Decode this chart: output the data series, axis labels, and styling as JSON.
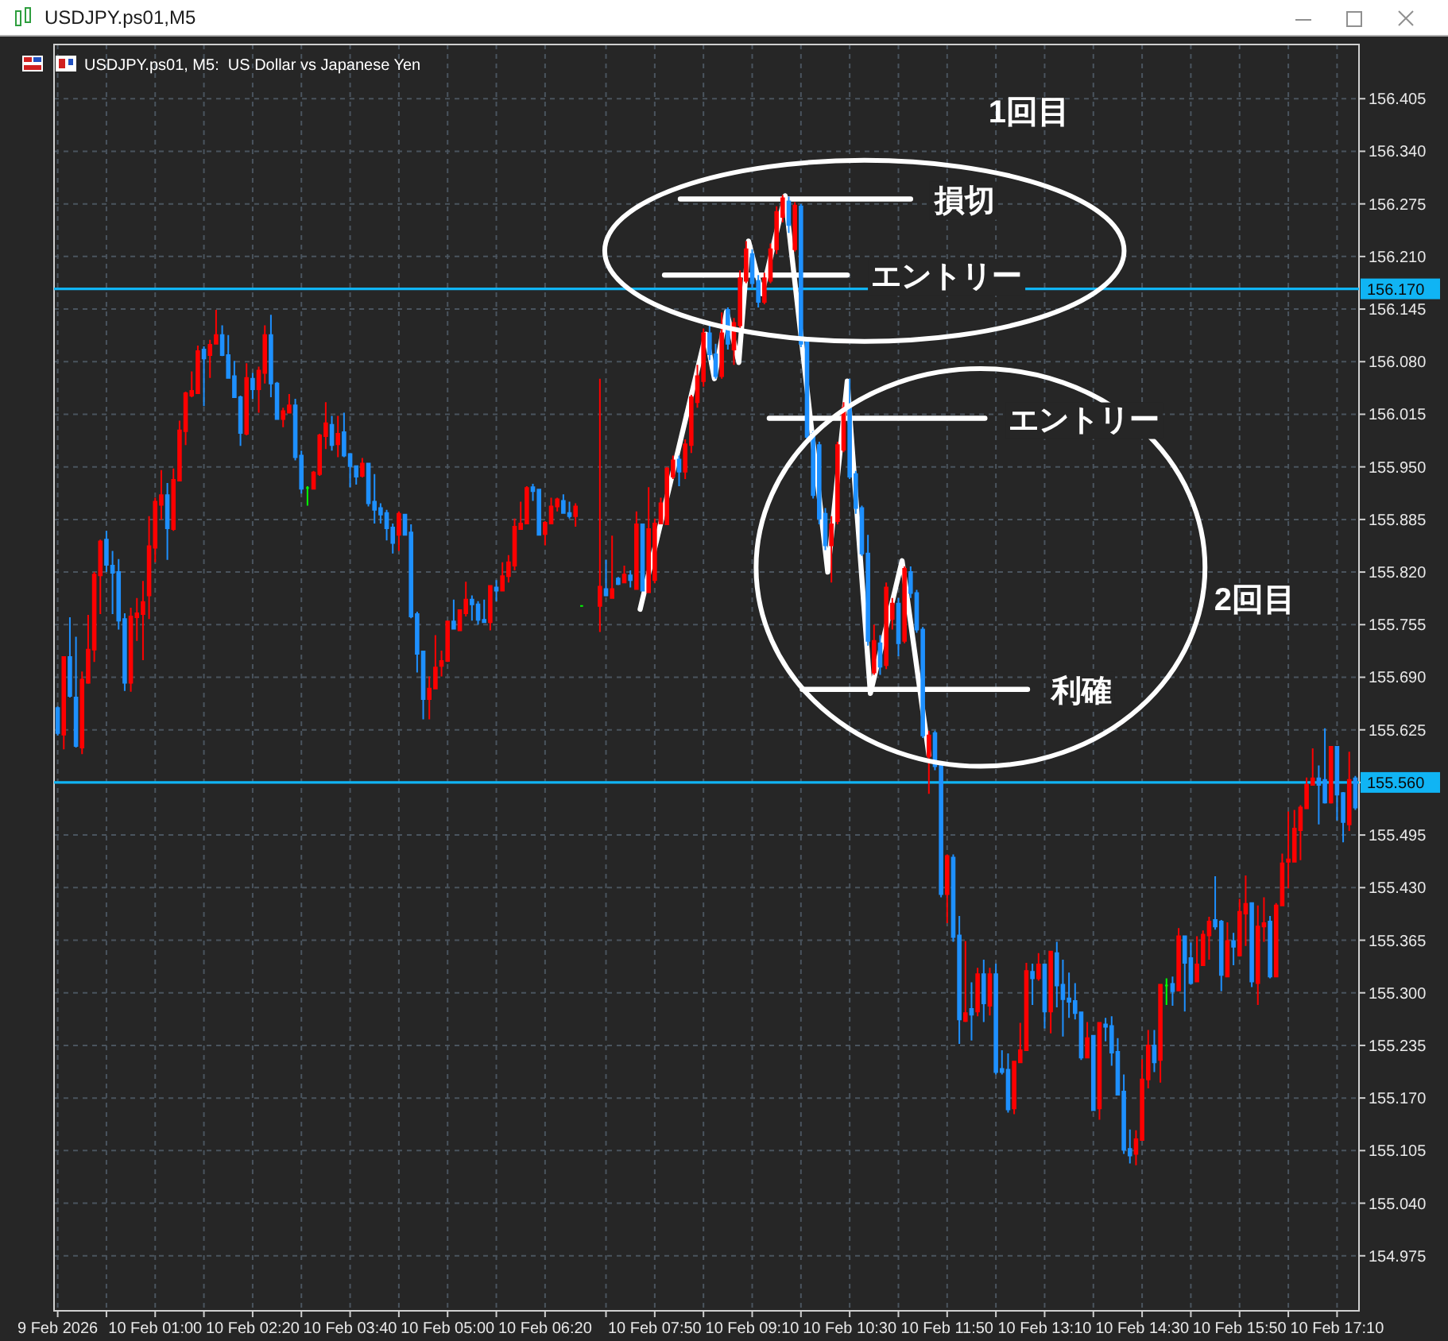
{
  "chart_data": {
    "type": "candlestick",
    "title": "USDJPY.ps01,M5",
    "subtitle": "USDJPY.ps01, M5:  US Dollar vs Japanese Yen",
    "xlim": [
      "2026-02-09T23:37",
      "2026-02-10T17:28"
    ],
    "xticks": [
      {
        "value": "2026-02-09T23:40",
        "label": "9 Feb 2026"
      },
      {
        "value": "2026-02-10T00:20",
        "label": null
      },
      {
        "value": "2026-02-10T01:00",
        "label": "10 Feb 01:00"
      },
      {
        "value": "2026-02-10T01:40",
        "label": null
      },
      {
        "value": "2026-02-10T02:20",
        "label": "10 Feb 02:20"
      },
      {
        "value": "2026-02-10T03:00",
        "label": null
      },
      {
        "value": "2026-02-10T03:40",
        "label": "10 Feb 03:40"
      },
      {
        "value": "2026-02-10T04:20",
        "label": null
      },
      {
        "value": "2026-02-10T05:00",
        "label": "10 Feb 05:00"
      },
      {
        "value": "2026-02-10T05:40",
        "label": null
      },
      {
        "value": "2026-02-10T06:20",
        "label": "10 Feb 06:20"
      },
      {
        "value": "2026-02-10T07:10",
        "label": null
      },
      {
        "value": "2026-02-10T07:50",
        "label": "10 Feb 07:50"
      },
      {
        "value": "2026-02-10T08:30",
        "label": null
      },
      {
        "value": "2026-02-10T09:10",
        "label": "10 Feb 09:10"
      },
      {
        "value": "2026-02-10T09:50",
        "label": null
      },
      {
        "value": "2026-02-10T10:30",
        "label": "10 Feb 10:30"
      },
      {
        "value": "2026-02-10T11:10",
        "label": null
      },
      {
        "value": "2026-02-10T11:50",
        "label": "10 Feb 11:50"
      },
      {
        "value": "2026-02-10T12:30",
        "label": null
      },
      {
        "value": "2026-02-10T13:10",
        "label": "10 Feb 13:10"
      },
      {
        "value": "2026-02-10T13:50",
        "label": null
      },
      {
        "value": "2026-02-10T14:30",
        "label": "10 Feb 14:30"
      },
      {
        "value": "2026-02-10T15:10",
        "label": null
      },
      {
        "value": "2026-02-10T15:50",
        "label": "10 Feb 15:50"
      },
      {
        "value": "2026-02-10T16:30",
        "label": null
      },
      {
        "value": "2026-02-10T17:10",
        "label": "10 Feb 17:10"
      }
    ],
    "ylim": [
      154.907,
      156.472
    ],
    "yticks": [
      154.975,
      {
        "value": 155.04,
        "label": "155.040"
      },
      155.105,
      {
        "value": 155.17,
        "label": "155.170"
      },
      155.235,
      {
        "value": 155.3,
        "label": "155.300"
      },
      155.365,
      {
        "value": 155.43,
        "label": "155.430"
      },
      155.495,
      {
        "value": 155.56,
        "label": null
      },
      155.625,
      {
        "value": 155.69,
        "label": "155.690"
      },
      155.755,
      {
        "value": 155.82,
        "label": "155.820"
      },
      155.885,
      {
        "value": 155.95,
        "label": "155.950"
      },
      156.015,
      {
        "value": 156.08,
        "label": "156.080"
      },
      156.145,
      {
        "value": 156.21,
        "label": "156.210"
      },
      156.275,
      {
        "value": 156.34,
        "label": "156.340"
      },
      156.405
    ],
    "grid": true,
    "ref_lines": [
      {
        "axis": "y",
        "value": 156.17,
        "label": "156.170",
        "color": "#10b4f4"
      },
      {
        "axis": "y",
        "value": 155.56,
        "label": "155.560",
        "color": "#10b4f4"
      }
    ],
    "annotations": [
      "1回目",
      "2回目"
    ],
    "series": [
      {
        "x": [
          "2026-02-09T23:40",
          "2026-02-09T23:45",
          "2026-02-09T23:50",
          "2026-02-09T23:55",
          "2026-02-10T00:00",
          "2026-02-10T00:05",
          "2026-02-10T00:10",
          "2026-02-10T00:15",
          "2026-02-10T00:20",
          "2026-02-10T00:25",
          "2026-02-10T00:30",
          "2026-02-10T00:35",
          "2026-02-10T00:40",
          "2026-02-10T00:45",
          "2026-02-10T00:50",
          "2026-02-10T00:55",
          "2026-02-10T01:00",
          "2026-02-10T01:05",
          "2026-02-10T01:10",
          "2026-02-10T01:15",
          "2026-02-10T01:20",
          "2026-02-10T01:25",
          "2026-02-10T01:30",
          "2026-02-10T01:35",
          "2026-02-10T01:40",
          "2026-02-10T01:45",
          "2026-02-10T01:50",
          "2026-02-10T01:55",
          "2026-02-10T02:00",
          "2026-02-10T02:05",
          "2026-02-10T02:10",
          "2026-02-10T02:15",
          "2026-02-10T02:20",
          "2026-02-10T02:25",
          "2026-02-10T02:30",
          "2026-02-10T02:35",
          "2026-02-10T02:40",
          "2026-02-10T02:45",
          "2026-02-10T02:50",
          "2026-02-10T02:55",
          "2026-02-10T03:00",
          "2026-02-10T03:05",
          "2026-02-10T03:10",
          "2026-02-10T03:15",
          "2026-02-10T03:20",
          "2026-02-10T03:25",
          "2026-02-10T03:30",
          "2026-02-10T03:35",
          "2026-02-10T03:40",
          "2026-02-10T03:45",
          "2026-02-10T03:50",
          "2026-02-10T03:55",
          "2026-02-10T04:00",
          "2026-02-10T04:05",
          "2026-02-10T04:10",
          "2026-02-10T04:15",
          "2026-02-10T04:20",
          "2026-02-10T04:25",
          "2026-02-10T04:30",
          "2026-02-10T04:35",
          "2026-02-10T04:40",
          "2026-02-10T04:45",
          "2026-02-10T04:50",
          "2026-02-10T04:55",
          "2026-02-10T05:00",
          "2026-02-10T05:05",
          "2026-02-10T05:10",
          "2026-02-10T05:15",
          "2026-02-10T05:20",
          "2026-02-10T05:25",
          "2026-02-10T05:30",
          "2026-02-10T05:35",
          "2026-02-10T05:40",
          "2026-02-10T05:45",
          "2026-02-10T05:50",
          "2026-02-10T05:55",
          "2026-02-10T06:00",
          "2026-02-10T06:05",
          "2026-02-10T06:10",
          "2026-02-10T06:15",
          "2026-02-10T06:20",
          "2026-02-10T06:25",
          "2026-02-10T06:30",
          "2026-02-10T06:35",
          "2026-02-10T06:40",
          "2026-02-10T06:45",
          "2026-02-10T06:50",
          "2026-02-10T07:05",
          "2026-02-10T07:10",
          "2026-02-10T07:15",
          "2026-02-10T07:20",
          "2026-02-10T07:25",
          "2026-02-10T07:30",
          "2026-02-10T07:35",
          "2026-02-10T07:40",
          "2026-02-10T07:45",
          "2026-02-10T07:50",
          "2026-02-10T07:55",
          "2026-02-10T08:00",
          "2026-02-10T08:05",
          "2026-02-10T08:10",
          "2026-02-10T08:15",
          "2026-02-10T08:20",
          "2026-02-10T08:25",
          "2026-02-10T08:30",
          "2026-02-10T08:35",
          "2026-02-10T08:40",
          "2026-02-10T08:45",
          "2026-02-10T08:50",
          "2026-02-10T08:55",
          "2026-02-10T09:00",
          "2026-02-10T09:05",
          "2026-02-10T09:10",
          "2026-02-10T09:15",
          "2026-02-10T09:20",
          "2026-02-10T09:25",
          "2026-02-10T09:30",
          "2026-02-10T09:35",
          "2026-02-10T09:40",
          "2026-02-10T09:45",
          "2026-02-10T09:50",
          "2026-02-10T09:55",
          "2026-02-10T10:00",
          "2026-02-10T10:05",
          "2026-02-10T10:10",
          "2026-02-10T10:15",
          "2026-02-10T10:20",
          "2026-02-10T10:25",
          "2026-02-10T10:30",
          "2026-02-10T10:35",
          "2026-02-10T10:40",
          "2026-02-10T10:45",
          "2026-02-10T10:50",
          "2026-02-10T10:55",
          "2026-02-10T11:00",
          "2026-02-10T11:05",
          "2026-02-10T11:10",
          "2026-02-10T11:15",
          "2026-02-10T11:20",
          "2026-02-10T11:25",
          "2026-02-10T11:30",
          "2026-02-10T11:35",
          "2026-02-10T11:40",
          "2026-02-10T11:45",
          "2026-02-10T11:50",
          "2026-02-10T11:55",
          "2026-02-10T12:00",
          "2026-02-10T12:05",
          "2026-02-10T12:10",
          "2026-02-10T12:15",
          "2026-02-10T12:20",
          "2026-02-10T12:25",
          "2026-02-10T12:30",
          "2026-02-10T12:35",
          "2026-02-10T12:40",
          "2026-02-10T12:45",
          "2026-02-10T12:50",
          "2026-02-10T12:55",
          "2026-02-10T13:00",
          "2026-02-10T13:05",
          "2026-02-10T13:10",
          "2026-02-10T13:15",
          "2026-02-10T13:20",
          "2026-02-10T13:25",
          "2026-02-10T13:30",
          "2026-02-10T13:35",
          "2026-02-10T13:40",
          "2026-02-10T13:45",
          "2026-02-10T13:50",
          "2026-02-10T13:55",
          "2026-02-10T14:00",
          "2026-02-10T14:05",
          "2026-02-10T14:10",
          "2026-02-10T14:15",
          "2026-02-10T14:20",
          "2026-02-10T14:25",
          "2026-02-10T14:30",
          "2026-02-10T14:35",
          "2026-02-10T14:40",
          "2026-02-10T14:45",
          "2026-02-10T14:50",
          "2026-02-10T14:55",
          "2026-02-10T15:00",
          "2026-02-10T15:05",
          "2026-02-10T15:10",
          "2026-02-10T15:15",
          "2026-02-10T15:20",
          "2026-02-10T15:25",
          "2026-02-10T15:30",
          "2026-02-10T15:35",
          "2026-02-10T15:40",
          "2026-02-10T15:45",
          "2026-02-10T15:50",
          "2026-02-10T15:55",
          "2026-02-10T16:00",
          "2026-02-10T16:05",
          "2026-02-10T16:10",
          "2026-02-10T16:15",
          "2026-02-10T16:20",
          "2026-02-10T16:25",
          "2026-02-10T16:30",
          "2026-02-10T16:35",
          "2026-02-10T16:40",
          "2026-02-10T16:45",
          "2026-02-10T16:50",
          "2026-02-10T16:55",
          "2026-02-10T17:00",
          "2026-02-10T17:05",
          "2026-02-10T17:10",
          "2026-02-10T17:15",
          "2026-02-10T17:20",
          "2026-02-10T17:25"
        ],
        "ohlc": [
          [
            155.652,
            155.654,
            155.618,
            155.621
          ],
          [
            155.619,
            155.715,
            155.601,
            155.715
          ],
          [
            155.715,
            155.764,
            155.665,
            155.667
          ],
          [
            155.665,
            155.74,
            155.603,
            155.605
          ],
          [
            155.603,
            155.697,
            155.595,
            155.687
          ],
          [
            155.683,
            155.767,
            155.682,
            155.724
          ],
          [
            155.724,
            155.82,
            155.709,
            155.817
          ],
          [
            155.816,
            155.86,
            155.768,
            155.858
          ],
          [
            155.86,
            155.871,
            155.82,
            155.829
          ],
          [
            155.828,
            155.846,
            155.768,
            155.819
          ],
          [
            155.82,
            155.836,
            155.749,
            155.76
          ],
          [
            155.762,
            155.769,
            155.673,
            155.683
          ],
          [
            155.683,
            155.776,
            155.672,
            155.765
          ],
          [
            155.764,
            155.788,
            155.735,
            155.769
          ],
          [
            155.768,
            155.809,
            155.711,
            155.783
          ],
          [
            155.791,
            155.889,
            155.762,
            155.852
          ],
          [
            155.85,
            155.912,
            155.832,
            155.907
          ],
          [
            155.903,
            155.946,
            155.885,
            155.915
          ],
          [
            155.915,
            155.93,
            155.835,
            155.874
          ],
          [
            155.873,
            155.948,
            155.871,
            155.934
          ],
          [
            155.933,
            156.007,
            155.933,
            155.995
          ],
          [
            155.994,
            156.043,
            155.977,
            156.041
          ],
          [
            156.038,
            156.068,
            156.036,
            156.044
          ],
          [
            156.041,
            156.1,
            156.041,
            156.093
          ],
          [
            156.095,
            156.099,
            156.025,
            156.084
          ],
          [
            156.088,
            156.107,
            156.06,
            156.101
          ],
          [
            156.102,
            156.144,
            156.102,
            156.113
          ],
          [
            156.113,
            156.125,
            156.087,
            156.088
          ],
          [
            156.088,
            156.113,
            156.06,
            156.06
          ],
          [
            156.062,
            156.081,
            156.035,
            156.036
          ],
          [
            156.036,
            156.038,
            155.976,
            155.992
          ],
          [
            155.991,
            156.078,
            155.989,
            156.06
          ],
          [
            156.059,
            156.066,
            156.034,
            156.046
          ],
          [
            156.046,
            156.074,
            156.017,
            156.069
          ],
          [
            156.066,
            156.125,
            156.053,
            156.113
          ],
          [
            156.113,
            156.138,
            156.036,
            156.053
          ],
          [
            156.053,
            156.055,
            156.008,
            156.009
          ],
          [
            156.009,
            156.023,
            155.999,
            156.019
          ],
          [
            156.017,
            156.04,
            156.016,
            156.026
          ],
          [
            156.026,
            156.034,
            155.958,
            155.962
          ],
          [
            155.964,
            155.97,
            155.917,
            155.923
          ],
          [
            155.924,
            155.926,
            155.902,
            155.924
          ],
          [
            155.923,
            155.945,
            155.922,
            155.943
          ],
          [
            155.941,
            155.991,
            155.939,
            155.989
          ],
          [
            155.988,
            156.03,
            155.972,
            156.004
          ],
          [
            156.002,
            156.013,
            155.97,
            155.977
          ],
          [
            155.978,
            156.013,
            155.962,
            155.991
          ],
          [
            155.993,
            156.017,
            155.962,
            155.964
          ],
          [
            155.966,
            155.967,
            155.925,
            155.951
          ],
          [
            155.951,
            155.952,
            155.928,
            155.938
          ],
          [
            155.939,
            155.961,
            155.937,
            155.954
          ],
          [
            155.954,
            155.955,
            155.901,
            155.905
          ],
          [
            155.907,
            155.941,
            155.88,
            155.897
          ],
          [
            155.899,
            155.905,
            155.88,
            155.891
          ],
          [
            155.893,
            155.897,
            155.859,
            155.874
          ],
          [
            155.875,
            155.88,
            155.843,
            155.856
          ],
          [
            155.866,
            155.895,
            155.846,
            155.892
          ],
          [
            155.891,
            155.892,
            155.865,
            155.866
          ],
          [
            155.869,
            155.879,
            155.763,
            155.765
          ],
          [
            155.768,
            155.771,
            155.696,
            155.719
          ],
          [
            155.722,
            155.723,
            155.638,
            155.663
          ],
          [
            155.663,
            155.691,
            155.638,
            155.676
          ],
          [
            155.676,
            155.742,
            155.675,
            155.702
          ],
          [
            155.704,
            155.723,
            155.691,
            155.71
          ],
          [
            155.71,
            155.76,
            155.709,
            155.759
          ],
          [
            155.759,
            155.786,
            155.749,
            155.75
          ],
          [
            155.748,
            155.774,
            155.747,
            155.773
          ],
          [
            155.769,
            155.808,
            155.765,
            155.786
          ],
          [
            155.786,
            155.791,
            155.76,
            155.78
          ],
          [
            155.78,
            155.784,
            155.755,
            155.761
          ],
          [
            155.761,
            155.786,
            155.757,
            155.758
          ],
          [
            155.758,
            155.804,
            155.748,
            155.803
          ],
          [
            155.801,
            155.81,
            155.784,
            155.797
          ],
          [
            155.797,
            155.832,
            155.796,
            155.815
          ],
          [
            155.815,
            155.841,
            155.807,
            155.832
          ],
          [
            155.828,
            155.886,
            155.822,
            155.876
          ],
          [
            155.873,
            155.907,
            155.872,
            155.88
          ],
          [
            155.88,
            155.926,
            155.879,
            155.924
          ],
          [
            155.925,
            155.929,
            155.908,
            155.92
          ],
          [
            155.922,
            155.923,
            155.865,
            155.866
          ],
          [
            155.867,
            155.883,
            155.853,
            155.881
          ],
          [
            155.88,
            155.912,
            155.879,
            155.901
          ],
          [
            155.901,
            155.912,
            155.895,
            155.91
          ],
          [
            155.908,
            155.916,
            155.892,
            155.893
          ],
          [
            155.893,
            155.907,
            155.886,
            155.889
          ],
          [
            155.889,
            155.905,
            155.876,
            155.901
          ],
          [
            155.778,
            155.778,
            155.778,
            155.778
          ],
          [
            155.778,
            156.059,
            155.746,
            155.802
          ],
          [
            155.799,
            155.835,
            155.79,
            155.791
          ],
          [
            155.788,
            155.865,
            155.787,
            155.799
          ],
          [
            155.812,
            155.814,
            155.804,
            155.805
          ],
          [
            155.807,
            155.828,
            155.806,
            155.817
          ],
          [
            155.816,
            155.822,
            155.801,
            155.81
          ],
          [
            155.799,
            155.895,
            155.798,
            155.879
          ],
          [
            155.879,
            155.88,
            155.796,
            155.797
          ],
          [
            155.795,
            155.925,
            155.794,
            155.873
          ],
          [
            155.81,
            155.886,
            155.806,
            155.88
          ],
          [
            155.88,
            155.912,
            155.879,
            155.905
          ],
          [
            155.879,
            155.95,
            155.878,
            155.948
          ],
          [
            155.938,
            155.964,
            155.935,
            155.958
          ],
          [
            155.959,
            155.964,
            155.926,
            155.944
          ],
          [
            155.944,
            155.984,
            155.935,
            155.978
          ],
          [
            155.977,
            156.039,
            155.967,
            156.036
          ],
          [
            156.03,
            156.076,
            156.023,
            156.062
          ],
          [
            156.056,
            156.121,
            156.049,
            156.115
          ],
          [
            156.115,
            156.128,
            156.082,
            156.089
          ],
          [
            156.089,
            156.102,
            156.059,
            156.062
          ],
          [
            156.062,
            156.141,
            156.059,
            156.115
          ],
          [
            156.144,
            156.147,
            156.095,
            156.102
          ],
          [
            156.095,
            156.134,
            156.076,
            156.128
          ],
          [
            156.125,
            156.193,
            156.121,
            156.183
          ],
          [
            156.18,
            156.229,
            156.177,
            156.219
          ],
          [
            156.213,
            156.219,
            156.17,
            156.177
          ],
          [
            156.18,
            156.187,
            156.147,
            156.154
          ],
          [
            156.154,
            156.19,
            156.151,
            156.183
          ],
          [
            156.18,
            156.226,
            156.177,
            156.219
          ],
          [
            156.219,
            156.272,
            156.213,
            156.265
          ],
          [
            156.259,
            156.286,
            156.252,
            156.282
          ],
          [
            156.278,
            156.284,
            156.239,
            156.249
          ],
          [
            156.219,
            156.277,
            156.216,
            156.273
          ],
          [
            156.272,
            156.275,
            156.098,
            156.102
          ],
          [
            156.107,
            156.108,
            155.984,
            155.987
          ],
          [
            155.991,
            155.994,
            155.911,
            155.915
          ],
          [
            155.977,
            155.981,
            155.879,
            155.886
          ],
          [
            155.892,
            155.899,
            155.847,
            155.853
          ],
          [
            155.853,
            155.889,
            155.807,
            155.879
          ],
          [
            155.883,
            155.981,
            155.879,
            155.977
          ],
          [
            155.971,
            156.03,
            155.968,
            156.023
          ],
          [
            156.023,
            156.059,
            155.935,
            155.938
          ],
          [
            155.941,
            155.945,
            155.892,
            155.899
          ],
          [
            155.899,
            155.902,
            155.84,
            155.843
          ],
          [
            155.843,
            155.866,
            155.729,
            155.735
          ],
          [
            155.696,
            155.755,
            155.693,
            155.735
          ],
          [
            155.732,
            155.742,
            155.693,
            155.703
          ],
          [
            155.705,
            155.807,
            155.7,
            155.801
          ],
          [
            155.762,
            155.788,
            155.749,
            155.781
          ],
          [
            155.781,
            155.788,
            155.716,
            155.732
          ],
          [
            155.735,
            155.827,
            155.732,
            155.824
          ],
          [
            155.82,
            155.827,
            155.788,
            155.794
          ],
          [
            155.794,
            155.798,
            155.745,
            155.749
          ],
          [
            155.749,
            155.752,
            155.615,
            155.618
          ],
          [
            155.592,
            155.624,
            155.546,
            155.618
          ],
          [
            155.621,
            155.624,
            155.575,
            155.58
          ],
          [
            155.582,
            155.585,
            155.418,
            155.422
          ],
          [
            155.422,
            155.471,
            155.386,
            155.469
          ],
          [
            155.467,
            155.471,
            155.363,
            155.369
          ],
          [
            155.371,
            155.395,
            155.237,
            155.267
          ],
          [
            155.265,
            155.364,
            155.264,
            155.275
          ],
          [
            155.28,
            155.313,
            155.241,
            155.273
          ],
          [
            155.277,
            155.331,
            155.271,
            155.323
          ],
          [
            155.323,
            155.341,
            155.264,
            155.287
          ],
          [
            155.284,
            155.331,
            155.272,
            155.323
          ],
          [
            155.323,
            155.336,
            155.199,
            155.202
          ],
          [
            155.206,
            155.229,
            155.199,
            155.202
          ],
          [
            155.205,
            155.225,
            155.152,
            155.156
          ],
          [
            155.157,
            155.216,
            155.15,
            155.215
          ],
          [
            155.214,
            155.263,
            155.213,
            155.229
          ],
          [
            155.229,
            155.337,
            155.228,
            155.327
          ],
          [
            155.326,
            155.336,
            155.285,
            155.318
          ],
          [
            155.318,
            155.349,
            155.315,
            155.335
          ],
          [
            155.335,
            155.336,
            155.256,
            155.277
          ],
          [
            155.277,
            155.352,
            155.25,
            155.351
          ],
          [
            155.349,
            155.363,
            155.282,
            155.309
          ],
          [
            155.31,
            155.341,
            155.246,
            155.292
          ],
          [
            155.293,
            155.325,
            155.269,
            155.289
          ],
          [
            155.29,
            155.312,
            155.267,
            155.275
          ],
          [
            155.276,
            155.277,
            155.217,
            155.22
          ],
          [
            155.22,
            155.264,
            155.219,
            155.244
          ],
          [
            155.247,
            155.248,
            155.154,
            155.155
          ],
          [
            155.157,
            155.264,
            155.143,
            155.263
          ],
          [
            155.261,
            155.269,
            155.24,
            155.258
          ],
          [
            155.259,
            155.271,
            155.21,
            155.226
          ],
          [
            155.227,
            155.244,
            155.173,
            155.174
          ],
          [
            155.178,
            155.199,
            155.101,
            155.106
          ],
          [
            155.107,
            155.131,
            155.089,
            155.099
          ],
          [
            155.101,
            155.13,
            155.087,
            155.119
          ],
          [
            155.118,
            155.218,
            155.117,
            155.193
          ],
          [
            155.193,
            155.254,
            155.182,
            155.235
          ],
          [
            155.235,
            155.254,
            155.202,
            155.214
          ],
          [
            155.217,
            155.311,
            155.189,
            155.31
          ],
          [
            155.309,
            155.318,
            155.285,
            155.309
          ],
          [
            155.311,
            155.32,
            155.284,
            155.302
          ],
          [
            155.303,
            155.38,
            155.302,
            155.37
          ],
          [
            155.37,
            155.371,
            155.277,
            155.337
          ],
          [
            155.343,
            155.362,
            155.31,
            155.312
          ],
          [
            155.314,
            155.37,
            155.313,
            155.335
          ],
          [
            155.334,
            155.377,
            155.333,
            155.372
          ],
          [
            155.371,
            155.394,
            155.341,
            155.388
          ],
          [
            155.39,
            155.444,
            155.378,
            155.382
          ],
          [
            155.388,
            155.39,
            155.302,
            155.322
          ],
          [
            155.32,
            155.387,
            155.319,
            155.364
          ],
          [
            155.364,
            155.374,
            155.334,
            155.357
          ],
          [
            155.346,
            155.416,
            155.345,
            155.4
          ],
          [
            155.398,
            155.445,
            155.358,
            155.41
          ],
          [
            155.411,
            155.412,
            155.307,
            155.314
          ],
          [
            155.312,
            155.408,
            155.285,
            155.382
          ],
          [
            155.382,
            155.418,
            155.363,
            155.386
          ],
          [
            155.388,
            155.395,
            155.318,
            155.32
          ],
          [
            155.32,
            155.411,
            155.319,
            155.408
          ],
          [
            155.408,
            155.472,
            155.407,
            155.46
          ],
          [
            155.462,
            155.524,
            155.429,
            155.465
          ],
          [
            155.462,
            155.526,
            155.461,
            155.503
          ],
          [
            155.501,
            155.532,
            155.464,
            155.529
          ],
          [
            155.528,
            155.566,
            155.527,
            155.557
          ],
          [
            155.557,
            155.602,
            155.556,
            155.565
          ],
          [
            155.565,
            155.581,
            155.508,
            155.557
          ],
          [
            155.563,
            155.627,
            155.534,
            155.535
          ],
          [
            155.535,
            155.605,
            155.534,
            155.604
          ],
          [
            155.604,
            155.605,
            155.513,
            155.545
          ],
          [
            155.547,
            155.548,
            155.486,
            155.511
          ],
          [
            155.508,
            155.598,
            155.5,
            155.563
          ],
          [
            155.565,
            155.568,
            155.526,
            155.529
          ]
        ],
        "colors": [
          "#1e90ff",
          "#ff0000",
          "#1e90ff",
          "#1e90ff",
          "#ff0000",
          "#ff0000",
          "#ff0000",
          "#ff0000",
          "#1e90ff",
          "#1e90ff",
          "#1e90ff",
          "#1e90ff",
          "#ff0000",
          "#ff0000",
          "#ff0000",
          "#ff0000",
          "#ff0000",
          "#ff0000",
          "#1e90ff",
          "#ff0000",
          "#ff0000",
          "#ff0000",
          "#ff0000",
          "#ff0000",
          "#1e90ff",
          "#ff0000",
          "#ff0000",
          "#1e90ff",
          "#1e90ff",
          "#1e90ff",
          "#1e90ff",
          "#ff0000",
          "#1e90ff",
          "#ff0000",
          "#ff0000",
          "#1e90ff",
          "#1e90ff",
          "#ff0000",
          "#ff0000",
          "#1e90ff",
          "#1e90ff",
          "#00ff00",
          "#ff0000",
          "#ff0000",
          "#ff0000",
          "#1e90ff",
          "#ff0000",
          "#1e90ff",
          "#1e90ff",
          "#1e90ff",
          "#ff0000",
          "#1e90ff",
          "#1e90ff",
          "#1e90ff",
          "#1e90ff",
          "#1e90ff",
          "#ff0000",
          "#1e90ff",
          "#1e90ff",
          "#1e90ff",
          "#1e90ff",
          "#ff0000",
          "#ff0000",
          "#ff0000",
          "#ff0000",
          "#1e90ff",
          "#ff0000",
          "#ff0000",
          "#1e90ff",
          "#1e90ff",
          "#1e90ff",
          "#ff0000",
          "#1e90ff",
          "#ff0000",
          "#ff0000",
          "#ff0000",
          "#ff0000",
          "#ff0000",
          "#1e90ff",
          "#1e90ff",
          "#ff0000",
          "#ff0000",
          "#ff0000",
          "#1e90ff",
          "#1e90ff",
          "#ff0000",
          "#00ff00",
          "#ff0000",
          "#1e90ff",
          "#ff0000",
          "#1e90ff",
          "#ff0000",
          "#1e90ff",
          "#ff0000",
          "#1e90ff",
          "#ff0000",
          "#ff0000",
          "#ff0000",
          "#ff0000",
          "#ff0000",
          "#1e90ff",
          "#ff0000",
          "#ff0000",
          "#ff0000",
          "#ff0000",
          "#1e90ff",
          "#1e90ff",
          "#ff0000",
          "#1e90ff",
          "#ff0000",
          "#ff0000",
          "#ff0000",
          "#1e90ff",
          "#1e90ff",
          "#ff0000",
          "#ff0000",
          "#ff0000",
          "#ff0000",
          "#1e90ff",
          "#ff0000",
          "#1e90ff",
          "#1e90ff",
          "#1e90ff",
          "#1e90ff",
          "#1e90ff",
          "#ff0000",
          "#ff0000",
          "#ff0000",
          "#1e90ff",
          "#1e90ff",
          "#1e90ff",
          "#1e90ff",
          "#ff0000",
          "#1e90ff",
          "#ff0000",
          "#ff0000",
          "#1e90ff",
          "#ff0000",
          "#1e90ff",
          "#1e90ff",
          "#1e90ff",
          "#ff0000",
          "#1e90ff",
          "#1e90ff",
          "#ff0000",
          "#1e90ff",
          "#1e90ff",
          "#ff0000",
          "#1e90ff",
          "#ff0000",
          "#1e90ff",
          "#ff0000",
          "#1e90ff",
          "#1e90ff",
          "#1e90ff",
          "#ff0000",
          "#ff0000",
          "#ff0000",
          "#1e90ff",
          "#ff0000",
          "#1e90ff",
          "#ff0000",
          "#1e90ff",
          "#1e90ff",
          "#1e90ff",
          "#1e90ff",
          "#1e90ff",
          "#ff0000",
          "#1e90ff",
          "#ff0000",
          "#1e90ff",
          "#1e90ff",
          "#1e90ff",
          "#1e90ff",
          "#1e90ff",
          "#ff0000",
          "#ff0000",
          "#ff0000",
          "#1e90ff",
          "#ff0000",
          "#00ff00",
          "#1e90ff",
          "#ff0000",
          "#1e90ff",
          "#1e90ff",
          "#ff0000",
          "#ff0000",
          "#ff0000",
          "#1e90ff",
          "#1e90ff",
          "#ff0000",
          "#1e90ff",
          "#ff0000",
          "#ff0000",
          "#1e90ff",
          "#ff0000",
          "#ff0000",
          "#1e90ff",
          "#ff0000",
          "#ff0000",
          "#ff0000",
          "#ff0000",
          "#ff0000",
          "#ff0000",
          "#ff0000",
          "#1e90ff",
          "#1e90ff",
          "#ff0000",
          "#1e90ff",
          "#1e90ff",
          "#ff0000",
          "#1e90ff"
        ]
      },
      {
        "type": "line",
        "color": "#ffffff",
        "x": [
          "2026-02-10T07:38",
          "2026-02-10T08:32",
          "2026-02-10T08:39",
          "2026-02-10T08:49",
          "2026-02-10T08:59",
          "2026-02-10T09:07",
          "2026-02-10T09:18",
          "2026-02-10T09:37",
          "2026-02-10T10:12",
          "2026-02-10T10:28",
          "2026-02-10T10:47",
          "2026-02-10T11:13",
          "2026-02-10T11:35"
        ],
        "values": [
          155.774,
          156.114,
          156.059,
          156.142,
          156.079,
          156.229,
          156.164,
          156.285,
          155.82,
          156.056,
          155.67,
          155.834,
          155.594
        ]
      },
      {
        "type": "line",
        "name": "損切",
        "color": "#ffffff",
        "x": [
          "2026-02-10T08:11",
          "2026-02-10T11:20"
        ],
        "values": [
          156.281,
          156.281
        ]
      },
      {
        "type": "line",
        "name": "エントリー",
        "color": "#ffffff",
        "x": [
          "2026-02-10T07:58",
          "2026-02-10T10:28"
        ],
        "values": [
          156.187,
          156.187
        ]
      },
      {
        "type": "line",
        "name": "エントリー",
        "color": "#ffffff",
        "x": [
          "2026-02-10T09:24",
          "2026-02-10T12:21"
        ],
        "values": [
          156.01,
          156.01
        ]
      },
      {
        "type": "line",
        "name": "利確",
        "color": "#ffffff",
        "x": [
          "2026-02-10T09:51",
          "2026-02-10T12:56"
        ],
        "values": [
          155.675,
          155.675
        ]
      }
    ]
  }
}
